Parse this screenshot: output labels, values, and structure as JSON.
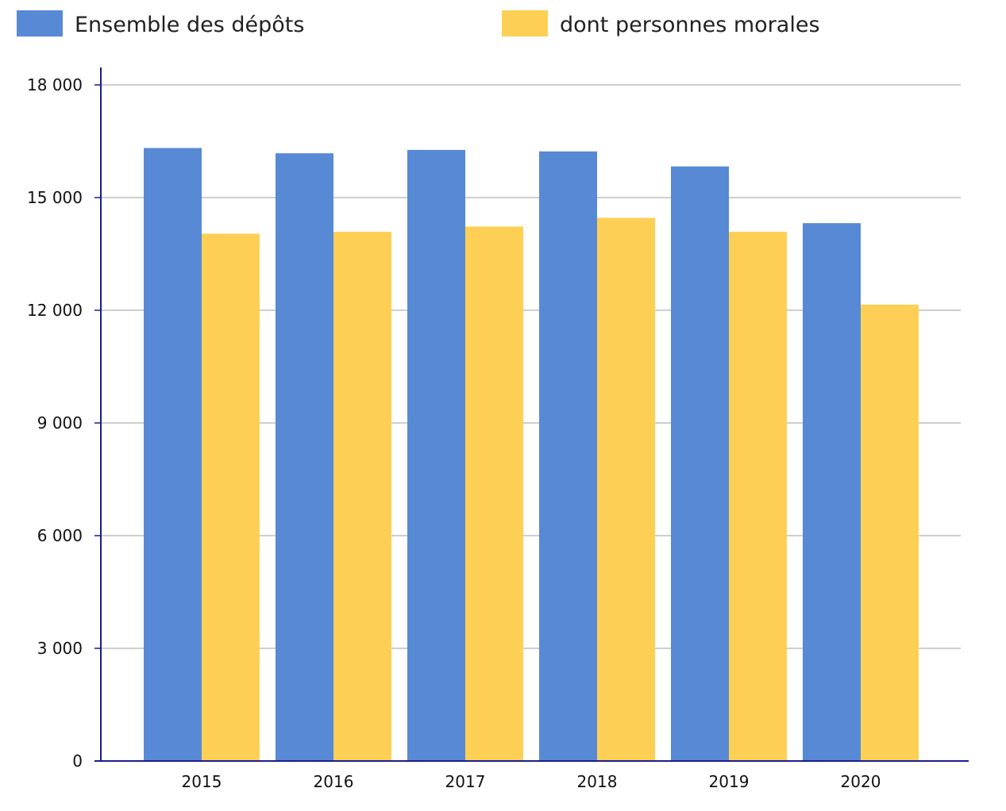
{
  "chart_data": {
    "type": "bar",
    "categories": [
      "2015",
      "2016",
      "2017",
      "2018",
      "2019",
      "2020"
    ],
    "series": [
      {
        "name": "Ensemble des dépôts",
        "color": "#5889d5",
        "values": [
          16320,
          16180,
          16270,
          16230,
          15830,
          14320
        ]
      },
      {
        "name": "dont personnes morales",
        "color": "#fdd055",
        "values": [
          14040,
          14090,
          14230,
          14460,
          14090,
          12150
        ]
      }
    ],
    "title": "",
    "xlabel": "",
    "ylabel": "",
    "ylim": [
      0,
      18000
    ],
    "yticks": [
      0,
      3000,
      6000,
      9000,
      12000,
      15000,
      18000
    ],
    "ytick_labels": [
      "0",
      "3 000",
      "6 000",
      "9 000",
      "12 000",
      "15 000",
      "18 000"
    ],
    "grid": true,
    "legend_position": "top",
    "axis_color": "#1b1b8c",
    "grid_color": "#9e9e9e"
  }
}
